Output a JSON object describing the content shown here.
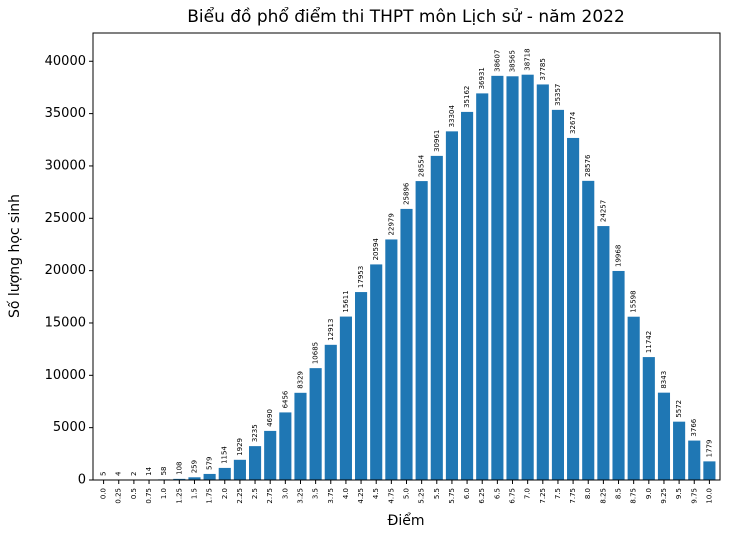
{
  "chart_data": {
    "type": "bar",
    "title": "Biểu đồ phổ điểm thi THPT môn Lịch sử - năm 2022",
    "x_label": "Điểm",
    "y_label": "Số lượng học sinh",
    "categories": [
      "0.0",
      "0.25",
      "0.5",
      "0.75",
      "1.0",
      "1.25",
      "1.5",
      "1.75",
      "2.0",
      "2.25",
      "2.5",
      "2.75",
      "3.0",
      "3.25",
      "3.5",
      "3.75",
      "4.0",
      "4.25",
      "4.5",
      "4.75",
      "5.0",
      "5.25",
      "5.5",
      "5.75",
      "6.0",
      "6.25",
      "6.5",
      "6.75",
      "7.0",
      "7.25",
      "7.5",
      "7.75",
      "8.0",
      "8.25",
      "8.5",
      "8.75",
      "9.0",
      "9.25",
      "9.5",
      "9.75",
      "10.0"
    ],
    "values": [
      5,
      4,
      2,
      14,
      58,
      108,
      259,
      579,
      1154,
      1929,
      3235,
      4690,
      6456,
      8329,
      10685,
      12913,
      15611,
      17953,
      20594,
      22979,
      25896,
      28554,
      30961,
      33304,
      35162,
      36931,
      38607,
      38565,
      38718,
      37785,
      35357,
      32674,
      28576,
      24257,
      19968,
      15598,
      11742,
      8343,
      5572,
      3766,
      1779
    ],
    "color": "#1f77b4",
    "ylim": [
      0,
      42700
    ],
    "yticks": [
      0,
      5000,
      10000,
      15000,
      20000,
      25000,
      30000,
      35000,
      40000
    ]
  }
}
